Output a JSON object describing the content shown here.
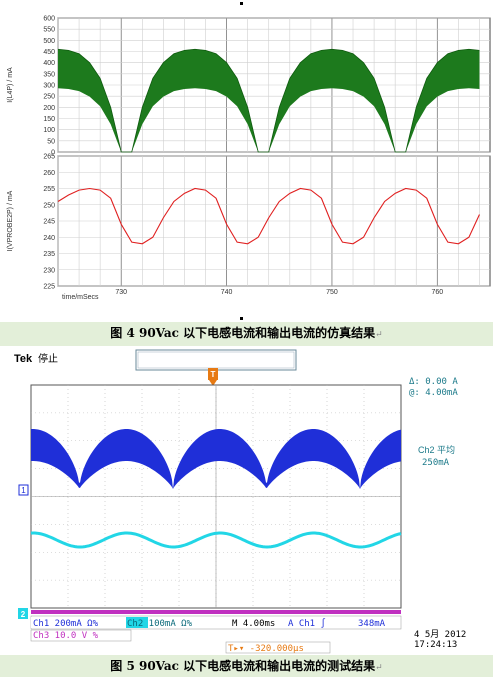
{
  "figure1": {
    "top_chart": {
      "ylabel": "I(L4P) / mA",
      "yticks": [
        "600",
        "550",
        "500",
        "450",
        "400",
        "350",
        "300",
        "250",
        "200",
        "150",
        "100",
        "50",
        "0"
      ],
      "series_color": "#1d7a1d"
    },
    "bottom_chart": {
      "ylabel": "I(VPROBE2P) / mA",
      "yticks": [
        "265",
        "260",
        "255",
        "250",
        "245",
        "240",
        "235",
        "230",
        "225"
      ],
      "series_color": "#e02020"
    },
    "xlabel": "time/mSecs",
    "xticks": [
      "730",
      "740",
      "750",
      "760"
    ]
  },
  "caption1": "图 4 90Vac 以下电感电流和输出电流的仿真结果",
  "caption2": "图 5 90Vac 以下电感电流和输出电流的测试结果",
  "return_mark": "↵",
  "chart_data": [
    {
      "type": "line",
      "title": "",
      "xlabel": "time/mSecs",
      "ylabel": "I(L4P) / mA",
      "x": [
        724,
        725,
        726,
        727,
        728,
        729,
        730,
        731,
        732,
        733,
        734,
        735,
        736,
        737,
        738,
        739,
        740,
        741,
        742,
        743,
        744,
        745,
        746,
        747,
        748,
        749,
        750,
        751,
        752,
        753,
        754,
        755,
        756,
        757,
        758,
        759,
        760,
        761,
        762,
        763,
        764
      ],
      "series": [
        {
          "values": [
            460,
            455,
            440,
            400,
            330,
            200,
            0,
            0,
            200,
            330,
            400,
            440,
            455,
            460,
            455,
            440,
            400,
            330,
            200,
            0,
            0,
            200,
            330,
            400,
            440,
            455,
            460,
            455,
            440,
            400,
            330,
            200,
            0,
            0,
            200,
            330,
            400,
            440,
            455,
            460,
            455
          ]
        }
      ],
      "ylim": [
        0,
        600
      ],
      "xlim": [
        724,
        765
      ]
    },
    {
      "type": "line",
      "title": "",
      "xlabel": "time/mSecs",
      "ylabel": "I(VPROBE2P) / mA",
      "x": [
        724,
        725,
        726,
        727,
        728,
        729,
        730,
        731,
        732,
        733,
        734,
        735,
        736,
        737,
        738,
        739,
        740,
        741,
        742,
        743,
        744,
        745,
        746,
        747,
        748,
        749,
        750,
        751,
        752,
        753,
        754,
        755,
        756,
        757,
        758,
        759,
        760,
        761,
        762,
        763,
        764
      ],
      "series": [
        {
          "values": [
            251,
            253,
            254.5,
            255,
            254.5,
            252,
            244,
            238.5,
            238,
            240,
            246,
            251,
            253.5,
            255,
            254.5,
            252,
            244,
            238.5,
            238,
            240,
            246,
            251,
            253.5,
            255,
            254.5,
            252,
            244,
            238.5,
            238,
            240,
            246,
            251,
            253.5,
            255,
            254.5,
            252,
            244,
            238.5,
            238,
            240,
            247
          ]
        }
      ],
      "ylim": [
        225,
        265
      ],
      "xlim": [
        724,
        765
      ]
    }
  ],
  "scope": {
    "brand": "Tek",
    "state": "停止",
    "cursor_delta": "Δ: 0.00 A",
    "cursor_abs": "@: 4.00mA",
    "measure_label": "Ch2 平均",
    "measure_value": "250mA",
    "ch1_marker": "1",
    "ch2_marker": "2",
    "trigger_marker": "T",
    "ch1_setting": "Ch1  200mA Ω%",
    "ch2_setting": "Ch2  100mA Ω%",
    "timebase": "M 4.00ms",
    "trigger_src": "A  Ch1 ∫",
    "trigger_level": "348mA",
    "ch3_setting": "Ch3  10.0 V  %",
    "date": "4 5月 2012",
    "time": "17:24:13",
    "offset": "T▸▾ -320.000μs",
    "ch1_color": "#1f2fd8",
    "ch2_color": "#22d6e6",
    "ch3_color": "#d036c8"
  }
}
